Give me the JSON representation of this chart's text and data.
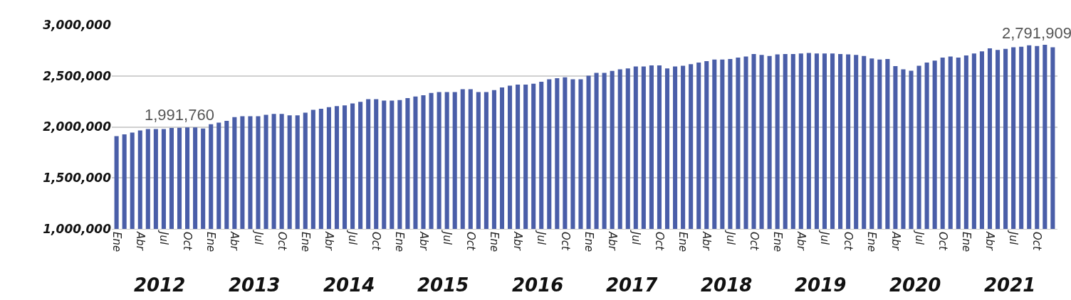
{
  "chart_data": {
    "type": "bar",
    "categories": [
      "Ene",
      null,
      null,
      "Abr",
      null,
      null,
      "Jul",
      null,
      null,
      "Oct",
      null,
      null,
      "Ene",
      null,
      null,
      "Abr",
      null,
      null,
      "Jul",
      null,
      null,
      "Oct",
      null,
      null,
      "Ene",
      null,
      null,
      "Abr",
      null,
      null,
      "Jul",
      null,
      null,
      "Oct",
      null,
      null,
      "Ene",
      null,
      null,
      "Abr",
      null,
      null,
      "Jul",
      null,
      null,
      "Oct",
      null,
      null,
      "Ene",
      null,
      null,
      "Abr",
      null,
      null,
      "Jul",
      null,
      null,
      "Oct",
      null,
      null,
      "Ene",
      null,
      null,
      "Abr",
      null,
      null,
      "Jul",
      null,
      null,
      "Oct",
      null,
      null,
      "Ene",
      null,
      null,
      "Abr",
      null,
      null,
      "Jul",
      null,
      null,
      "Oct",
      null,
      null,
      "Ene",
      null,
      null,
      "Abr",
      null,
      null,
      "Jul",
      null,
      null,
      "Oct",
      null,
      null,
      "Ene",
      null,
      null,
      "Abr",
      null,
      null,
      "Jul",
      null,
      null,
      "Oct",
      null,
      null,
      "Ene",
      null,
      null,
      "Abr",
      null,
      null,
      "Jul",
      null,
      null,
      "Oct",
      null,
      null
    ],
    "values": [
      1909000,
      1926000,
      1944000,
      1965000,
      1979000,
      1979000,
      1979000,
      1990000,
      1991760,
      1995000,
      1995000,
      1985000,
      2026000,
      2042000,
      2060000,
      2095000,
      2105000,
      2105000,
      2105000,
      2118000,
      2128000,
      2128000,
      2114000,
      2114000,
      2139000,
      2167000,
      2177000,
      2193000,
      2204000,
      2211000,
      2230000,
      2246000,
      2272000,
      2272000,
      2258000,
      2258000,
      2263000,
      2282000,
      2298000,
      2310000,
      2333000,
      2342000,
      2342000,
      2342000,
      2370000,
      2370000,
      2342000,
      2342000,
      2361000,
      2386000,
      2405000,
      2414000,
      2414000,
      2423000,
      2442000,
      2467000,
      2477000,
      2486000,
      2467000,
      2467000,
      2502000,
      2530000,
      2530000,
      2549000,
      2565000,
      2574000,
      2593000,
      2593000,
      2602000,
      2602000,
      2574000,
      2593000,
      2600000,
      2615000,
      2630000,
      2645000,
      2660000,
      2660000,
      2665000,
      2680000,
      2690000,
      2715000,
      2705000,
      2695000,
      2710000,
      2715000,
      2715000,
      2720000,
      2725000,
      2720000,
      2720000,
      2720000,
      2715000,
      2710000,
      2705000,
      2695000,
      2670000,
      2660000,
      2665000,
      2595000,
      2565000,
      2550000,
      2600000,
      2630000,
      2650000,
      2680000,
      2690000,
      2680000,
      2700000,
      2720000,
      2740000,
      2770000,
      2755000,
      2765000,
      2780000,
      2785000,
      2800000,
      2791909,
      2805000,
      2780000
    ],
    "value_labels": [
      null,
      null,
      null,
      null,
      null,
      null,
      null,
      null,
      "1,991,760",
      null,
      null,
      null,
      null,
      null,
      null,
      null,
      null,
      null,
      null,
      null,
      null,
      null,
      null,
      null,
      null,
      null,
      null,
      null,
      null,
      null,
      null,
      null,
      null,
      null,
      null,
      null,
      null,
      null,
      null,
      null,
      null,
      null,
      null,
      null,
      null,
      null,
      null,
      null,
      null,
      null,
      null,
      null,
      null,
      null,
      null,
      null,
      null,
      null,
      null,
      null,
      null,
      null,
      null,
      null,
      null,
      null,
      null,
      null,
      null,
      null,
      null,
      null,
      null,
      null,
      null,
      null,
      null,
      null,
      null,
      null,
      null,
      null,
      null,
      null,
      null,
      null,
      null,
      null,
      null,
      null,
      null,
      null,
      null,
      null,
      null,
      null,
      null,
      null,
      null,
      null,
      null,
      null,
      null,
      null,
      null,
      null,
      null,
      null,
      null,
      null,
      null,
      null,
      null,
      null,
      null,
      null,
      null,
      "2,791,909",
      null,
      null
    ],
    "color": "#4a5ea8",
    "ylim": [
      1000000,
      3000000
    ],
    "yticks": [
      {
        "value": 1000000,
        "label": "1,000,000"
      },
      {
        "value": 1500000,
        "label": "1,500,000"
      },
      {
        "value": 2000000,
        "label": "2,000,000"
      },
      {
        "value": 2500000,
        "label": "2,500,000"
      },
      {
        "value": 3000000,
        "label": "3,000,000"
      }
    ],
    "grid": "y",
    "annotations": [
      "2012",
      "2013",
      "2014",
      "2015",
      "2016",
      "2017",
      "2018",
      "2019",
      "2020",
      "2021"
    ]
  }
}
